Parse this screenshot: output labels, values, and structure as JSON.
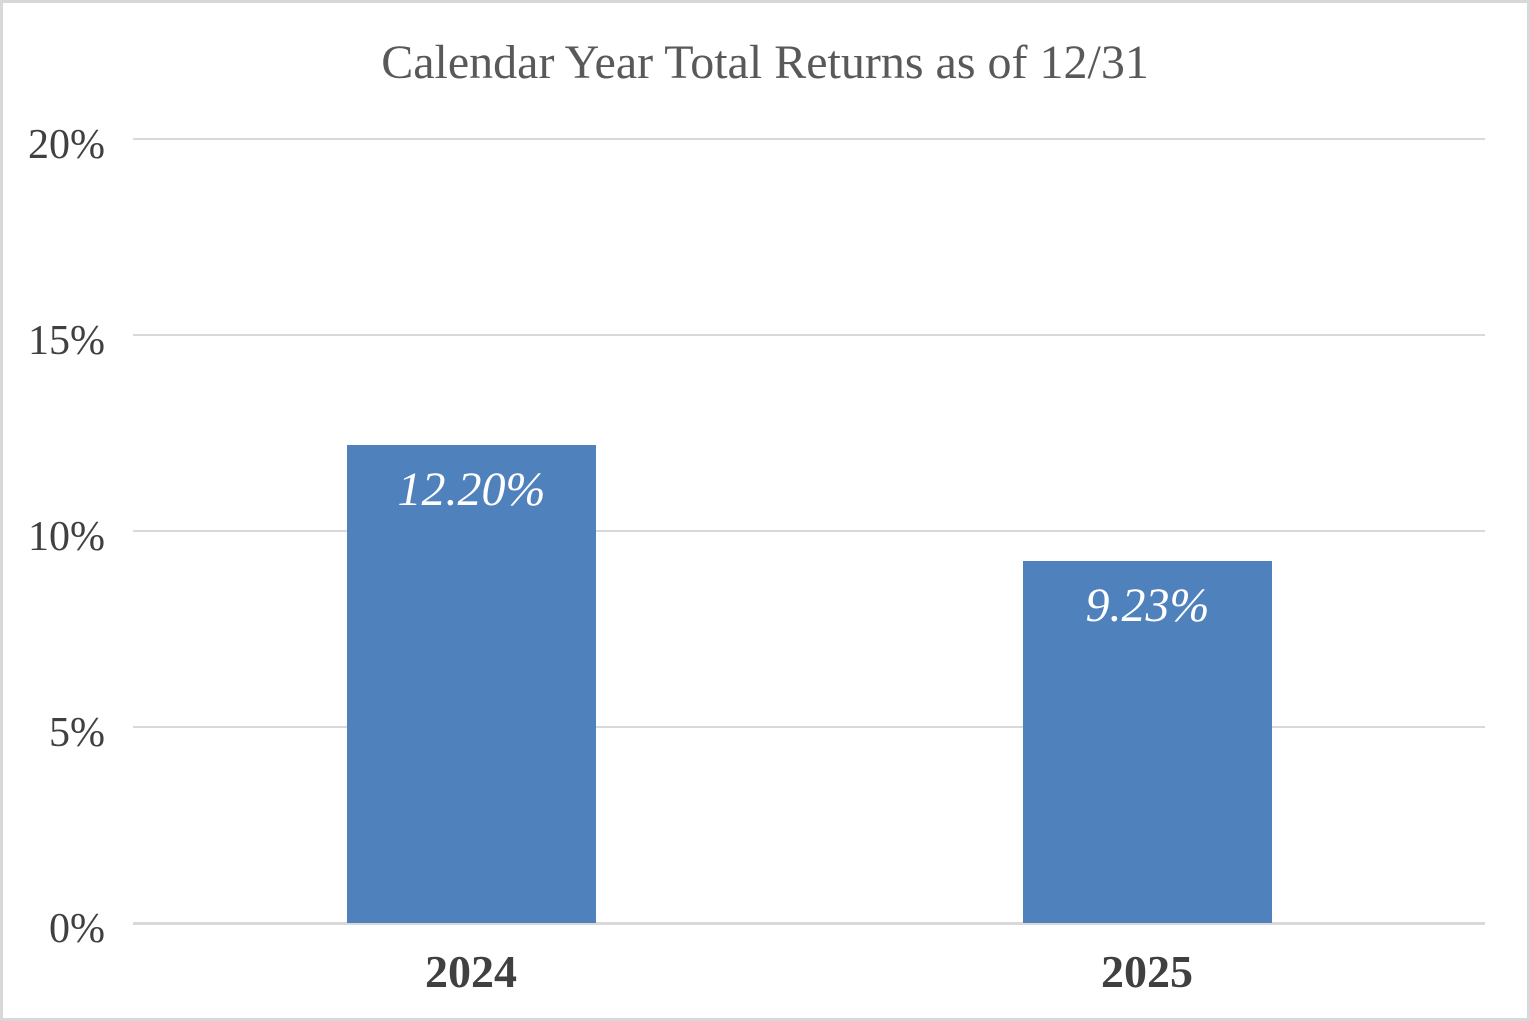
{
  "chart_data": {
    "type": "bar",
    "title": "Calendar Year Total Returns as of 12/31",
    "categories": [
      "2024",
      "2025"
    ],
    "values": [
      12.2,
      9.23
    ],
    "value_labels": [
      "12.20%",
      "9.23%"
    ],
    "ylim": [
      0,
      20
    ],
    "yticks": [
      0,
      5,
      10,
      15,
      20
    ],
    "ytick_labels": [
      "0%",
      "5%",
      "10%",
      "15%",
      "20%"
    ],
    "grid": true,
    "legend": "none",
    "bar_color": "#4F81BD",
    "bar_label_color": "#FFFFFF",
    "title_color": "#595959",
    "axis_label_color": "#404040",
    "gridline_color": "#D9D9D9"
  }
}
